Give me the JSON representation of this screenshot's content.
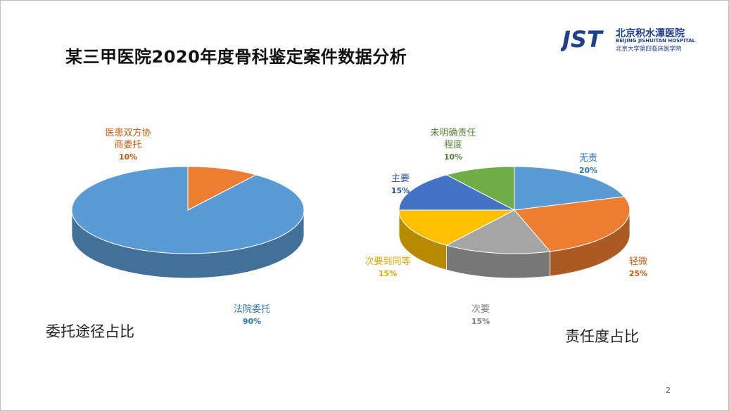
{
  "slide": {
    "title": "某三甲医院2020年度骨科鉴定案件数据分析",
    "page_number": "2"
  },
  "logo": {
    "cn_name": "北京积水潭医院",
    "en_name": "BEIJING JISHUITAN HOSPITAL",
    "sub_name": "北京大学第四临床医学院",
    "mark_text": "JST",
    "color": "#1f3f8f"
  },
  "chart_data": [
    {
      "type": "pie",
      "caption": "委托途径占比",
      "title": "",
      "start_angle_deg": 0,
      "slices": [
        {
          "label": "医患双方协商委托",
          "label_lines": [
            "医患双方协",
            "商委托"
          ],
          "value": 10,
          "pct_label": "10%",
          "color": "#ed7d31",
          "label_color": "#c55a11"
        },
        {
          "label": "法院委托",
          "label_lines": [
            "法院委托"
          ],
          "value": 90,
          "pct_label": "90%",
          "color": "#5b9bd5",
          "label_color": "#2e75b6"
        }
      ]
    },
    {
      "type": "pie",
      "caption": "责任度占比",
      "title": "",
      "start_angle_deg": 0,
      "slices": [
        {
          "label": "无责",
          "label_lines": [
            "无责"
          ],
          "value": 20,
          "pct_label": "20%",
          "color": "#5b9bd5",
          "label_color": "#2e75b6"
        },
        {
          "label": "轻微",
          "label_lines": [
            "轻微"
          ],
          "value": 25,
          "pct_label": "25%",
          "color": "#ed7d31",
          "label_color": "#c55a11"
        },
        {
          "label": "次要",
          "label_lines": [
            "次要"
          ],
          "value": 15,
          "pct_label": "15%",
          "color": "#a5a5a5",
          "label_color": "#7f7f7f"
        },
        {
          "label": "次要到同等",
          "label_lines": [
            "次要到同等"
          ],
          "value": 15,
          "pct_label": "15%",
          "color": "#ffc000",
          "label_color": "#e0a800"
        },
        {
          "label": "主要",
          "label_lines": [
            "主要"
          ],
          "value": 15,
          "pct_label": "15%",
          "color": "#4472c4",
          "label_color": "#2f5597"
        },
        {
          "label": "未明确责任程度",
          "label_lines": [
            "未明确责任",
            "程度"
          ],
          "value": 10,
          "pct_label": "10%",
          "color": "#70ad47",
          "label_color": "#548235"
        }
      ]
    }
  ]
}
